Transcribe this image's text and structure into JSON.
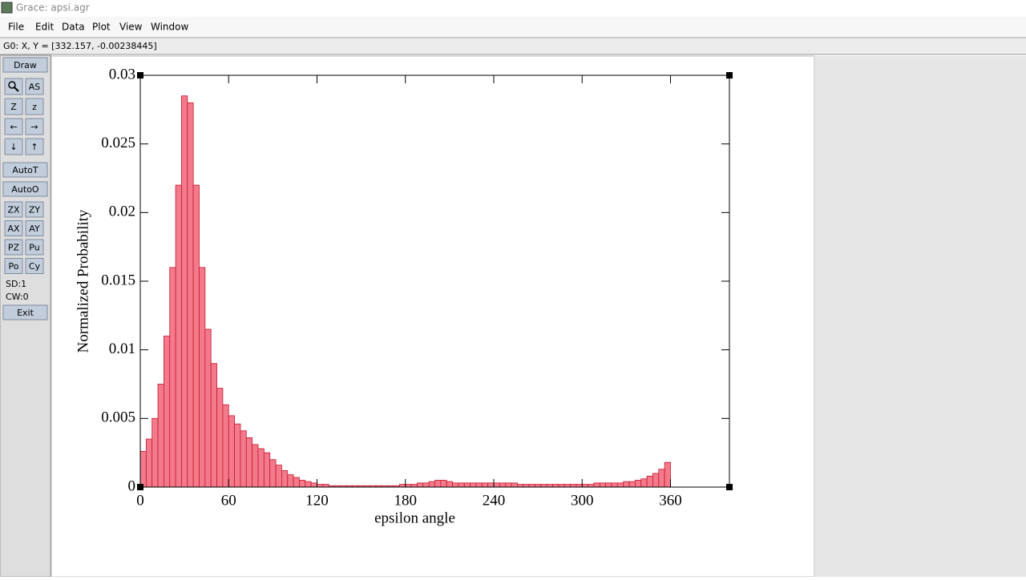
{
  "window": {
    "title": "Grace: apsi.agr"
  },
  "menu": [
    "File",
    "Edit",
    "Data",
    "Plot",
    "View",
    "Window"
  ],
  "status": "G0: X, Y = [332.157, -0.00238445]",
  "toolbar": {
    "draw": "Draw",
    "icons": [
      "AS",
      "Z",
      "z",
      "←",
      "→",
      "↓",
      "↑"
    ],
    "auto": [
      "AutoT",
      "AutoO"
    ],
    "pairs": [
      "ZX",
      "ZY",
      "AX",
      "AY",
      "PZ",
      "Pu",
      "Po",
      "Cy"
    ],
    "info": [
      "SD:1",
      "CW:0"
    ],
    "exit": "Exit"
  },
  "chart_data": {
    "type": "histogram",
    "x_label": "epsilon angle",
    "y_label": "Normalized Probability",
    "color": "#f27a8a",
    "edge_color": "#c81830",
    "bins": [
      0,
      4,
      8,
      12,
      16,
      20,
      24,
      28,
      32,
      36,
      40,
      44,
      48,
      52,
      56,
      60,
      64,
      68,
      72,
      76,
      80,
      84,
      88,
      92,
      96,
      100,
      104,
      108,
      112,
      116,
      120,
      124,
      128,
      132,
      136,
      140,
      144,
      148,
      152,
      156,
      160,
      164,
      168,
      172,
      176,
      180,
      184,
      188,
      192,
      196,
      200,
      204,
      208,
      212,
      216,
      220,
      224,
      228,
      232,
      236,
      240,
      244,
      248,
      252,
      256,
      260,
      264,
      268,
      272,
      276,
      280,
      284,
      288,
      292,
      296,
      300,
      304,
      308,
      312,
      316,
      320,
      324,
      328,
      332,
      336,
      340,
      344,
      348,
      352,
      356,
      360
    ],
    "values": [
      0.0026,
      0.0035,
      0.005,
      0.0075,
      0.011,
      0.016,
      0.022,
      0.0285,
      0.028,
      0.022,
      0.016,
      0.0115,
      0.009,
      0.0072,
      0.006,
      0.0052,
      0.0046,
      0.0041,
      0.0036,
      0.0031,
      0.0028,
      0.0025,
      0.002,
      0.0016,
      0.0012,
      0.0009,
      0.0007,
      0.0005,
      0.0004,
      0.0003,
      0.0002,
      0.0002,
      0.0001,
      0.0001,
      0.0001,
      0.0001,
      0.0001,
      0.0001,
      0.0001,
      0.0001,
      0.0001,
      0.0001,
      0.0001,
      0.0001,
      0.0002,
      0.0002,
      0.0002,
      0.0003,
      0.0003,
      0.0004,
      0.0005,
      0.0005,
      0.0004,
      0.0003,
      0.0003,
      0.0003,
      0.0003,
      0.0003,
      0.0003,
      0.0003,
      0.0003,
      0.0003,
      0.0003,
      0.0003,
      0.0002,
      0.0002,
      0.0002,
      0.0002,
      0.0002,
      0.0002,
      0.0002,
      0.0002,
      0.0002,
      0.0002,
      0.0002,
      0.0002,
      0.0002,
      0.0003,
      0.0003,
      0.0003,
      0.0003,
      0.0003,
      0.0004,
      0.0004,
      0.0005,
      0.0006,
      0.0008,
      0.001,
      0.0013,
      0.0018
    ],
    "xlim": [
      0,
      400
    ],
    "xticks": [
      0,
      60,
      120,
      180,
      240,
      300,
      360
    ],
    "ylim": [
      0,
      0.03
    ],
    "yticks": [
      0,
      0.005,
      0.01,
      0.015,
      0.02,
      0.025,
      0.03
    ]
  }
}
